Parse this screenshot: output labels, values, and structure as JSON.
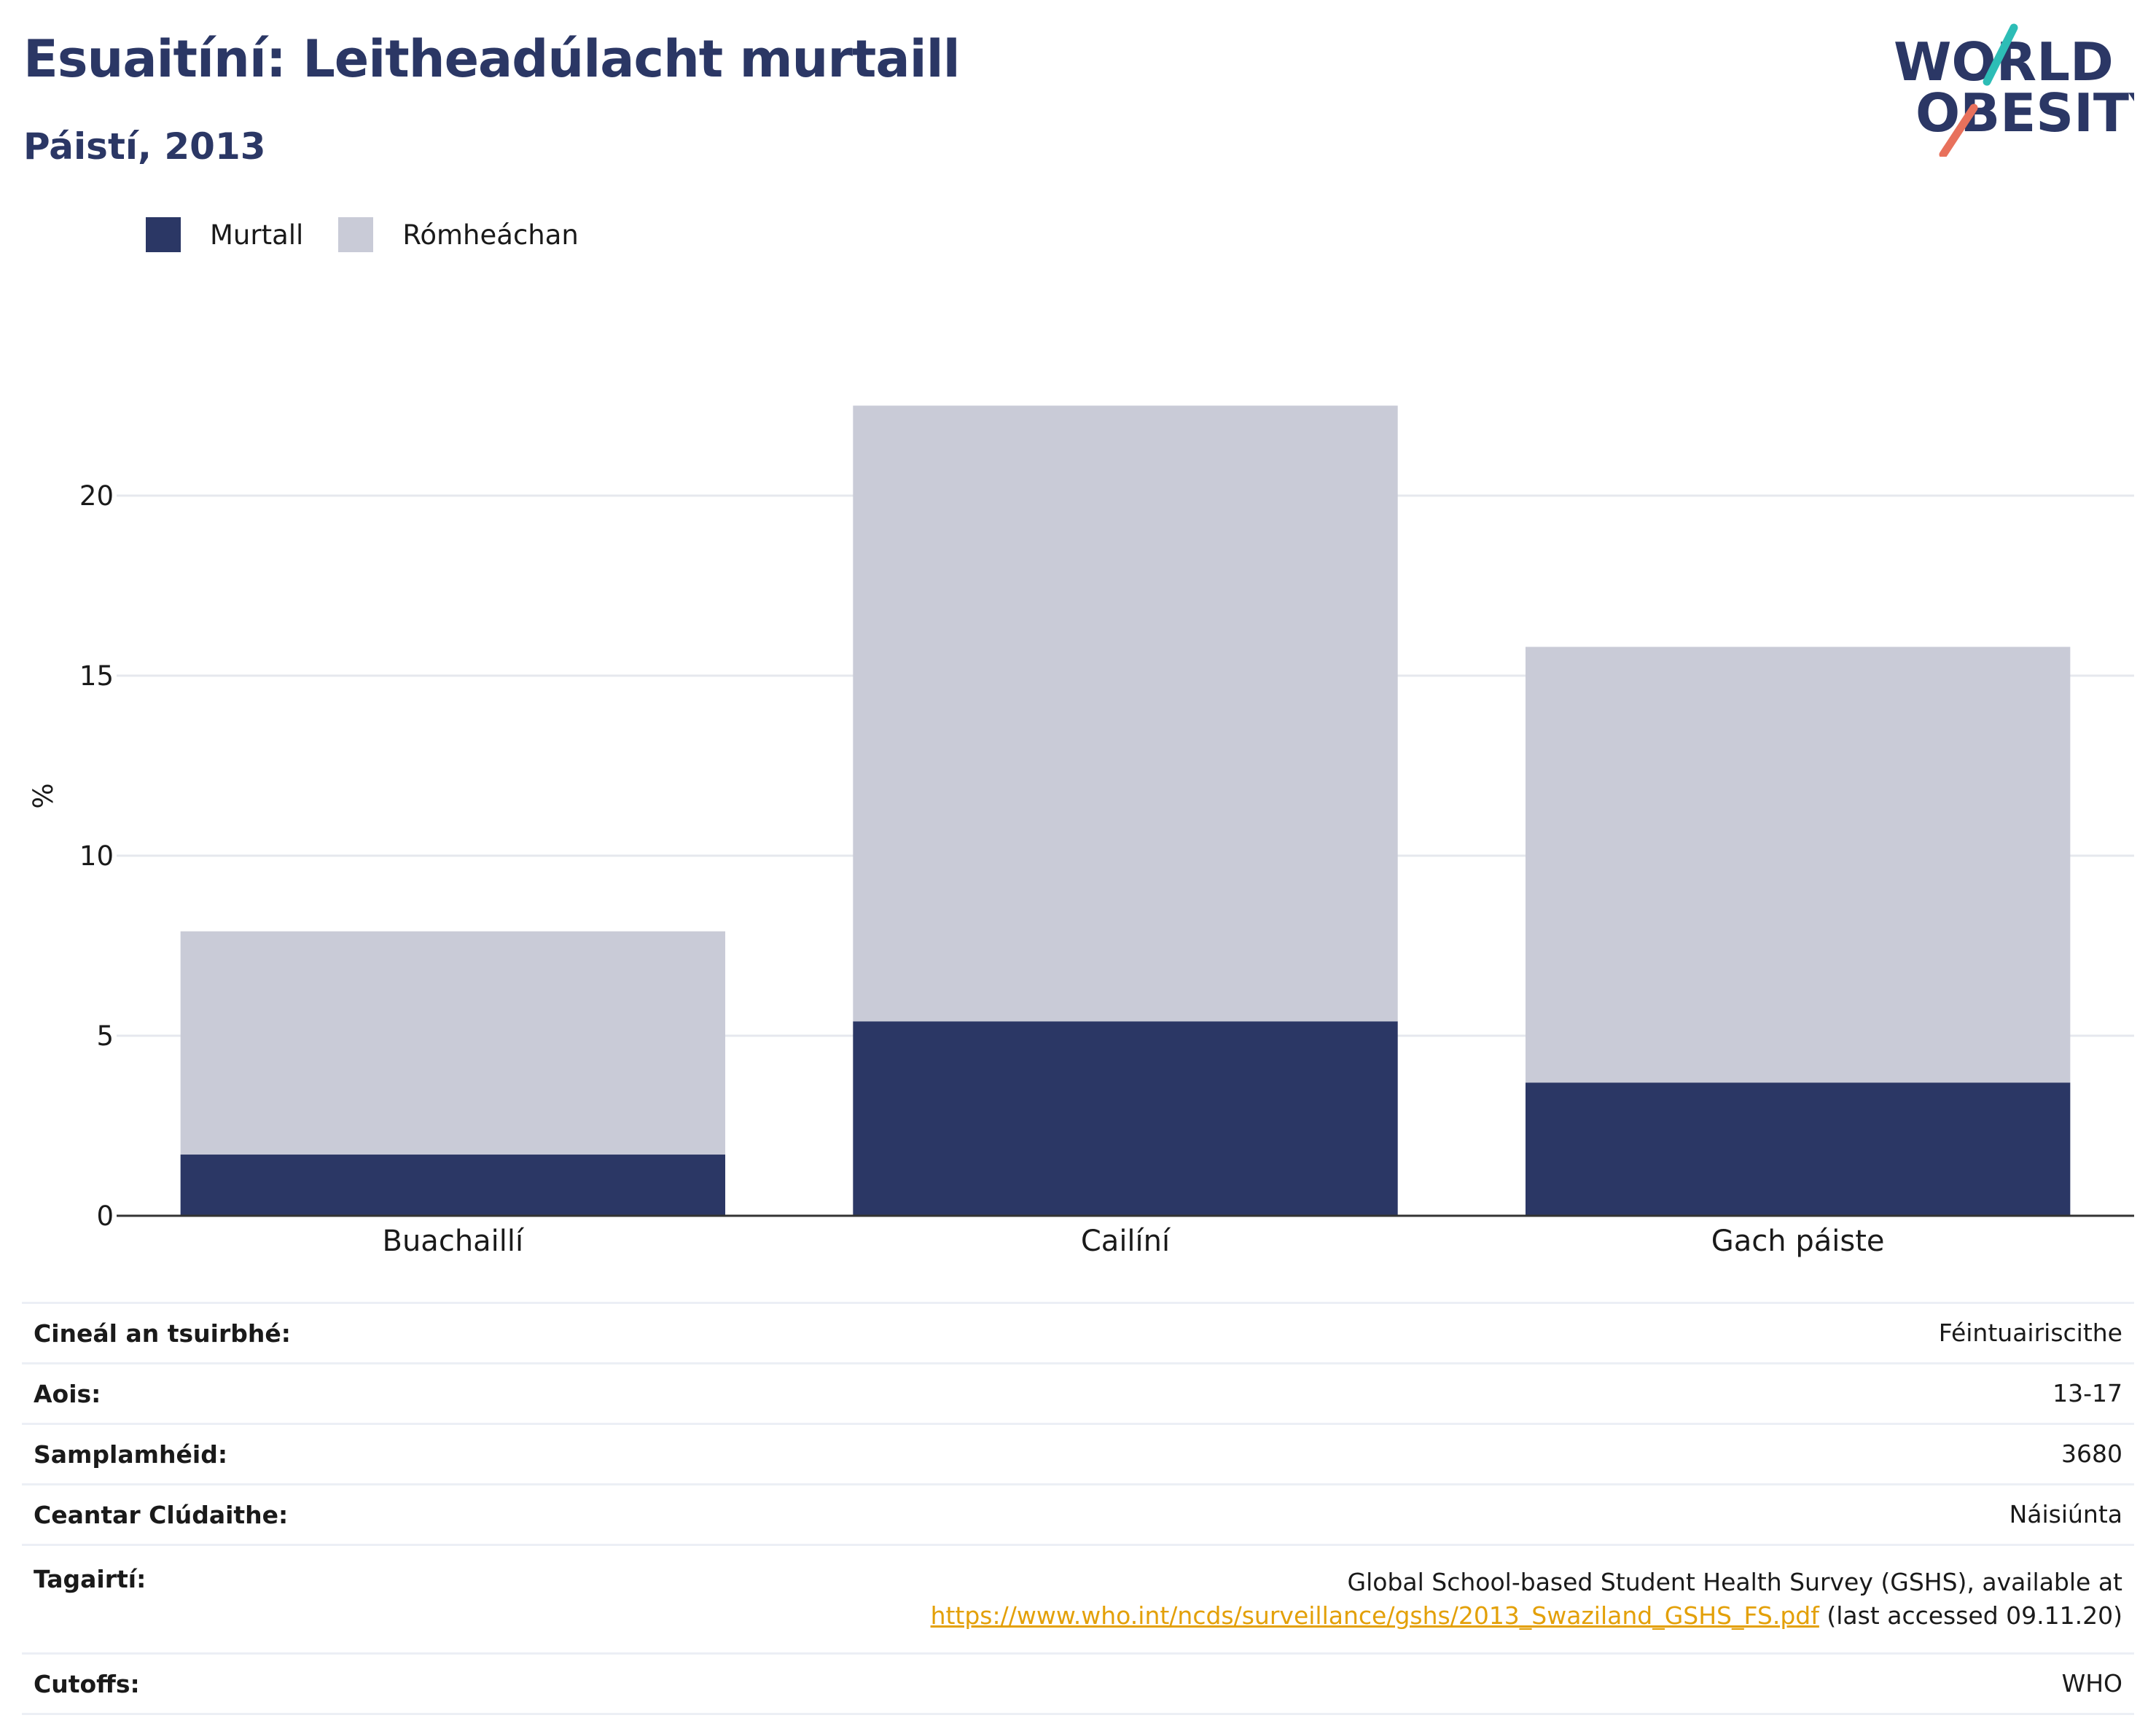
{
  "title": "Esuaitíní: Leitheadúlacht murtaill",
  "subtitle": "Páistí, 2013",
  "logo": {
    "line1": "WORLD",
    "line2": "OBESITY",
    "colors": {
      "text": "#2b3765",
      "slash_top": "#2dbdb6",
      "slash_bottom": "#e8715c"
    }
  },
  "legend": [
    {
      "label": "Murtall",
      "color": "#2b3765"
    },
    {
      "label": "Rómheáchan",
      "color": "#c9cbd7"
    }
  ],
  "chart_data": {
    "type": "bar",
    "stacked": true,
    "categories": [
      "Buachaillí",
      "Cailíní",
      "Gach páiste"
    ],
    "series": [
      {
        "name": "Murtall",
        "values": [
          1.7,
          5.4,
          3.7
        ],
        "color": "#2b3765"
      },
      {
        "name": "Rómheáchan",
        "values": [
          6.2,
          17.1,
          12.1
        ],
        "color": "#c9cbd7"
      }
    ],
    "ylabel": "%",
    "xlabel": "",
    "ylim": [
      0,
      24
    ],
    "yticks": [
      0,
      5,
      10,
      15,
      20
    ],
    "grid": true,
    "legend_position": "top-left"
  },
  "info": {
    "survey_type_label": "Cineál an tsuirbhé:",
    "survey_type_value": "Féintuairiscithe",
    "age_label": "Aois:",
    "age_value": "13-17",
    "sample_label": "Samplamhéid:",
    "sample_value": "3680",
    "area_label": "Ceantar Clúdaithe:",
    "area_value": "Náisiúnta",
    "refs_label": "Tagairtí:",
    "refs_line1": "Global School-based Student Health Survey (GSHS), available at",
    "refs_link": "https://www.who.int/ncds/surveillance/gshs/2013_Swaziland_GSHS_FS.pdf",
    "refs_suffix": " (last accessed 09.11.20)",
    "cutoffs_label": "Cutoffs:",
    "cutoffs_value": "WHO"
  }
}
